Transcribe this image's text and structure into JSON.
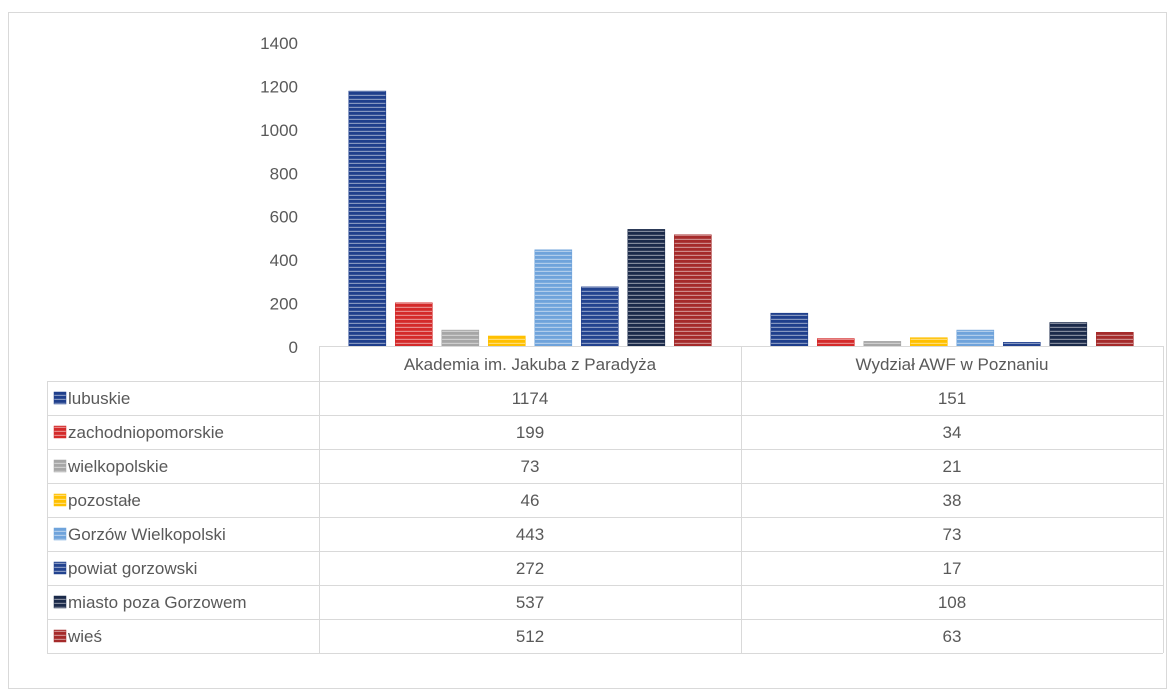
{
  "chart_data": {
    "type": "bar",
    "categories": [
      "Akademia im. Jakuba z Paradyża",
      "Wydział AWF w Poznaniu"
    ],
    "series": [
      {
        "name": "lubuskie",
        "values": [
          1174,
          151
        ],
        "color": "#1F3F8C"
      },
      {
        "name": "zachodniopomorskie",
        "values": [
          199,
          34
        ],
        "color": "#D42A2A"
      },
      {
        "name": "wielkopolskie",
        "values": [
          73,
          21
        ],
        "color": "#A6A6A6"
      },
      {
        "name": "pozostałe",
        "values": [
          46,
          38
        ],
        "color": "#FFC000"
      },
      {
        "name": "Gorzów Wielkopolski",
        "values": [
          443,
          73
        ],
        "color": "#6FA3DB"
      },
      {
        "name": "powiat gorzowski",
        "values": [
          272,
          17
        ],
        "color": "#23438F"
      },
      {
        "name": "miasto poza Gorzowem",
        "values": [
          537,
          108
        ],
        "color": "#1B2A4A"
      },
      {
        "name": "wieś",
        "values": [
          512,
          63
        ],
        "color": "#A52A2A"
      }
    ],
    "yticks": [
      "0",
      "200",
      "400",
      "600",
      "800",
      "1000",
      "1200",
      "1400"
    ],
    "ylim": [
      0,
      1400
    ],
    "grid": false,
    "legend": "data-table",
    "pattern": "horizontal stripes"
  }
}
